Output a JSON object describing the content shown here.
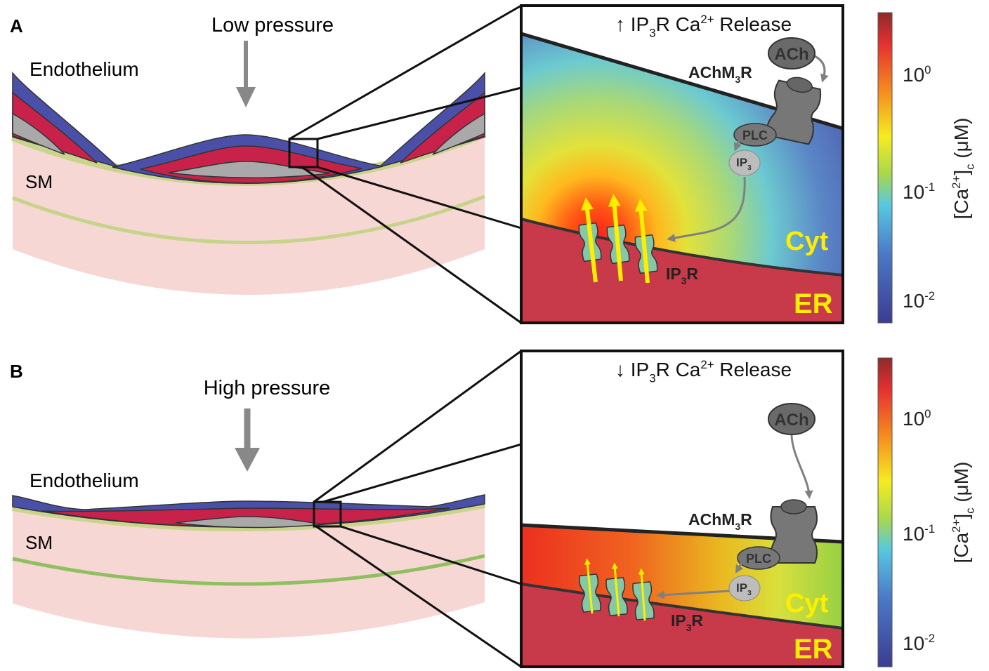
{
  "panels": [
    {
      "label": "A",
      "pressure": "Low pressure",
      "tissue": {
        "endothelium": "Endothelium",
        "sm": "SM"
      },
      "inset": {
        "title": [
          "↑ IP",
          "3",
          "R Ca",
          "2+",
          " Release"
        ],
        "receptor": [
          "AChM",
          "3",
          "R"
        ],
        "ligand": "ACh",
        "enzyme": "PLC",
        "messenger": [
          "IP",
          "3"
        ],
        "channel": [
          "IP",
          "3",
          "R"
        ],
        "cytosol": "Cyt",
        "er": "ER"
      },
      "colorbar": {
        "ticks": [
          [
            "10",
            "0"
          ],
          [
            "10",
            "-1"
          ],
          [
            "10",
            "-2"
          ]
        ],
        "label": [
          "[Ca",
          "2+",
          "]",
          "c",
          " (μM)"
        ]
      }
    },
    {
      "label": "B",
      "pressure": "High pressure",
      "tissue": {
        "endothelium": "Endothelium",
        "sm": "SM"
      },
      "inset": {
        "title": [
          "↓ IP",
          "3",
          "R Ca",
          "2+",
          " Release"
        ],
        "receptor": [
          "AChM",
          "3",
          "R"
        ],
        "ligand": "ACh",
        "enzyme": "PLC",
        "messenger": [
          "IP",
          "3"
        ],
        "channel": [
          "IP",
          "3",
          "R"
        ],
        "cytosol": "Cyt",
        "er": "ER"
      },
      "colorbar": {
        "ticks": [
          [
            "10",
            "0"
          ],
          [
            "10",
            "-1"
          ],
          [
            "10",
            "-2"
          ]
        ],
        "label": [
          "[Ca",
          "2+",
          "]",
          "c",
          " (μM)"
        ]
      }
    }
  ]
}
